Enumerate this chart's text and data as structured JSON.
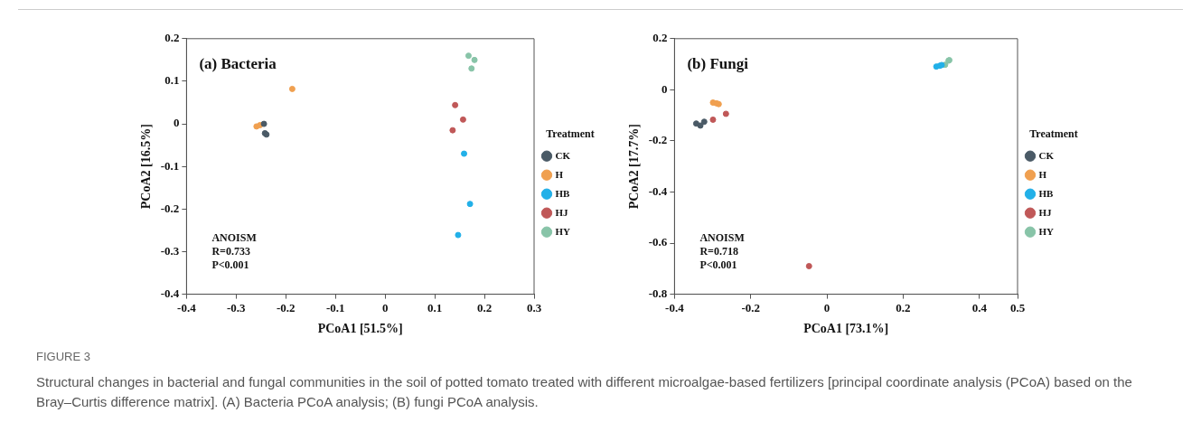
{
  "chart_data": [
    {
      "type": "scatter",
      "title": "(a) Bacteria",
      "xlabel": "PCoA1 [51.5%]",
      "ylabel": "PCoA2 [16.5%]",
      "legend_title": "Treatment",
      "legend": "right",
      "marker": "circle",
      "xlim": [
        -0.4,
        0.3
      ],
      "xticks": [
        -0.4,
        -0.3,
        -0.2,
        -0.1,
        0,
        0.1,
        0.2,
        0.3
      ],
      "ylim": [
        -0.4,
        0.2
      ],
      "yticks": [
        -0.4,
        -0.3,
        -0.2,
        -0.1,
        0,
        0.1,
        0.2
      ],
      "annotations": [
        "ANOISM",
        "R=0.733",
        "P<0.001"
      ],
      "series": [
        {
          "name": "CK",
          "color": "#4a5a66",
          "x": [
            -0.244,
            -0.242,
            -0.239
          ],
          "values": [
            0.0,
            -0.022,
            -0.025
          ]
        },
        {
          "name": "H",
          "color": "#f0a050",
          "x": [
            -0.259,
            -0.252,
            -0.187
          ],
          "values": [
            -0.006,
            -0.003,
            0.082
          ]
        },
        {
          "name": "HB",
          "color": "#22b0e8",
          "x": [
            0.159,
            0.171,
            0.147
          ],
          "values": [
            -0.07,
            -0.188,
            -0.261
          ]
        },
        {
          "name": "HJ",
          "color": "#c05858",
          "x": [
            0.141,
            0.157,
            0.136
          ],
          "values": [
            0.044,
            0.01,
            -0.015
          ]
        },
        {
          "name": "HY",
          "color": "#88c4a8",
          "x": [
            0.168,
            0.18,
            0.174
          ],
          "values": [
            0.16,
            0.15,
            0.13
          ]
        }
      ]
    },
    {
      "type": "scatter",
      "title": "(b) Fungi",
      "xlabel": "PCoA1 [73.1%]",
      "ylabel": "PCoA2 [17.7%]",
      "legend_title": "Treatment",
      "legend": "right",
      "marker": "circle",
      "xlim": [
        -0.4,
        0.5
      ],
      "xticks": [
        -0.4,
        -0.2,
        0,
        0.2,
        0.4,
        0.5
      ],
      "ylim": [
        -0.8,
        0.2
      ],
      "yticks": [
        -0.8,
        -0.6,
        -0.4,
        -0.2,
        0,
        0.2
      ],
      "annotations": [
        "ANOISM",
        "R=0.718",
        "P<0.001"
      ],
      "series": [
        {
          "name": "CK",
          "color": "#4a5a66",
          "x": [
            -0.343,
            -0.332,
            -0.322
          ],
          "values": [
            -0.132,
            -0.14,
            -0.125
          ]
        },
        {
          "name": "H",
          "color": "#f0a050",
          "x": [
            -0.299,
            -0.29,
            -0.284
          ],
          "values": [
            -0.05,
            -0.053,
            -0.056
          ]
        },
        {
          "name": "HB",
          "color": "#22b0e8",
          "x": [
            0.287,
            0.296,
            0.301
          ],
          "values": [
            0.091,
            0.094,
            0.097
          ]
        },
        {
          "name": "HJ",
          "color": "#c05858",
          "x": [
            -0.299,
            -0.265,
            -0.047
          ],
          "values": [
            -0.117,
            -0.094,
            -0.69
          ]
        },
        {
          "name": "HY",
          "color": "#88c4a8",
          "x": [
            0.31,
            0.319,
            0.321
          ],
          "values": [
            0.098,
            0.114,
            0.116
          ]
        }
      ]
    },
    {
      "type": "other",
      "title": "FIGURE 3",
      "annotations": [
        "Structural changes in bacterial and fungal communities in the soil of potted tomato treated with different microalgae-based fertilizers [principal coordinate analysis (PCoA) based on the Bray–Curtis difference matrix]. (A) Bacteria PCoA analysis; (B) fungi PCoA analysis."
      ]
    }
  ]
}
